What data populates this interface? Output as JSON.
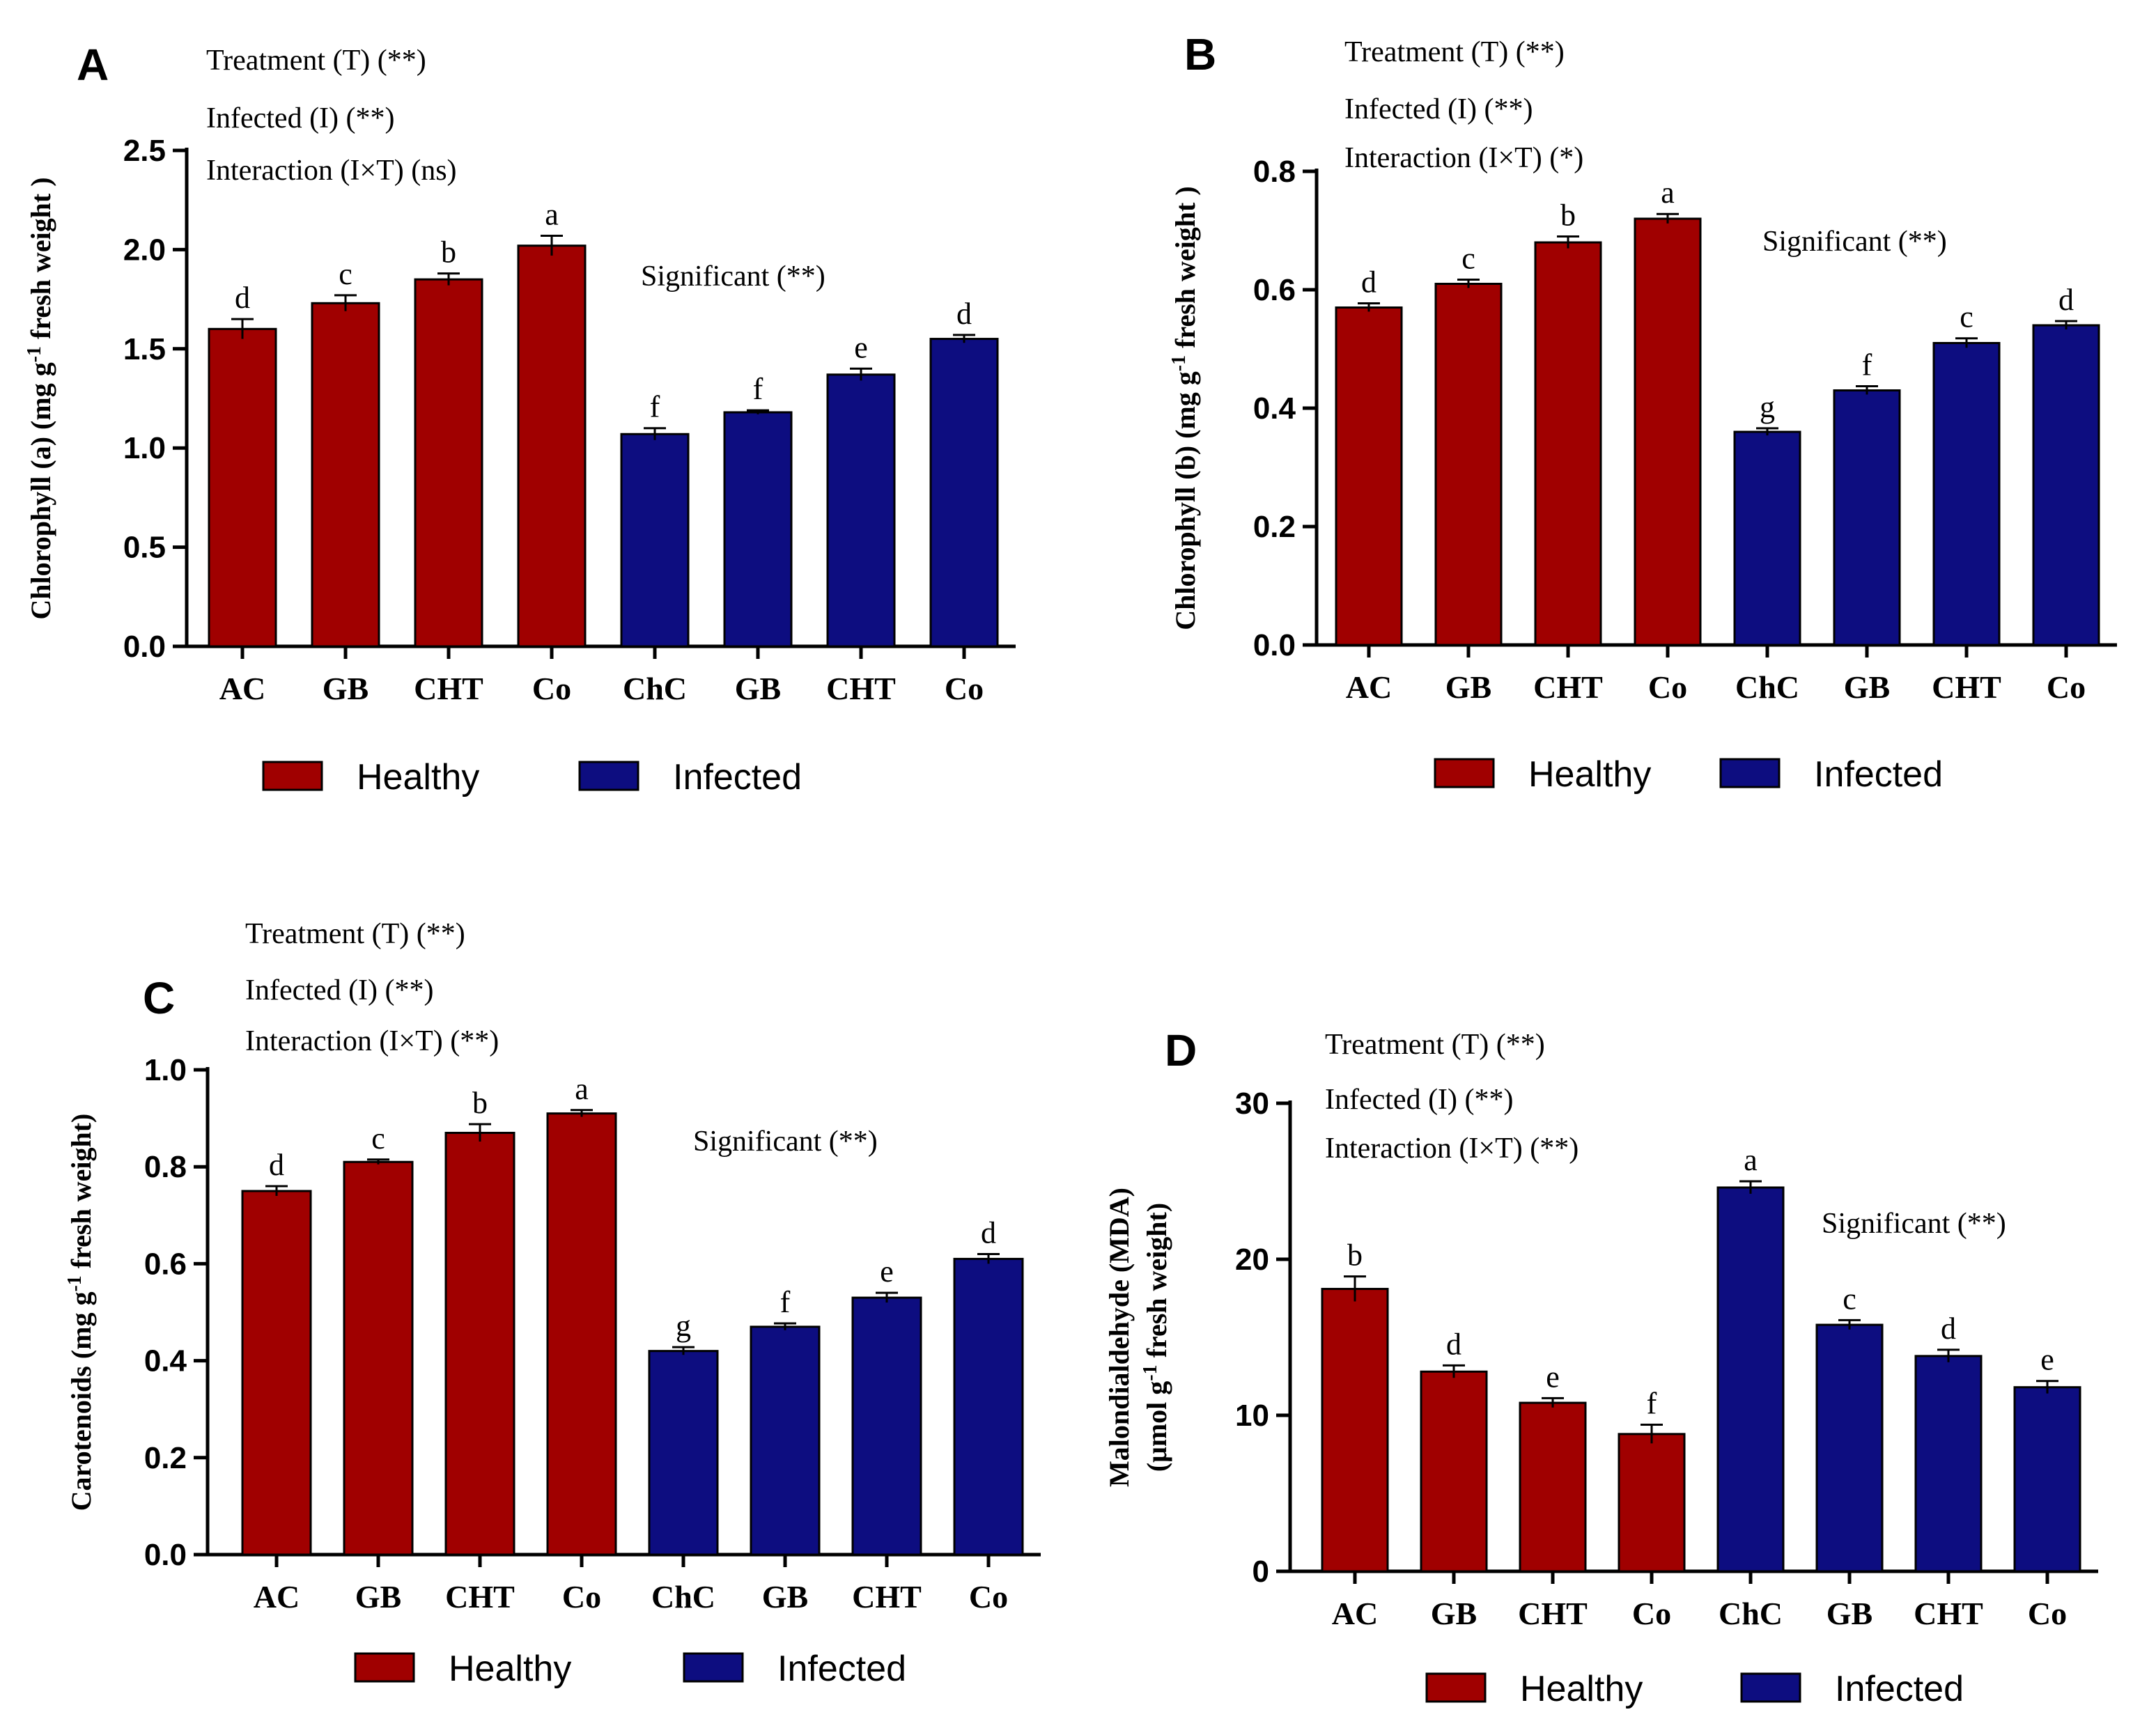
{
  "colors": {
    "healthy": "#a00000",
    "infected": "#0d0d80"
  },
  "legend": {
    "healthy": "Healthy",
    "infected": "Infected"
  },
  "chart_data": [
    {
      "panel": "A",
      "type": "bar",
      "ylabel_main": "Chlorophyll (a) (mg g",
      "ylabel_sup": "-1",
      "ylabel_rest": " fresh weight )",
      "ylim": [
        0,
        2.5
      ],
      "yticks": [
        "0.0",
        "0.5",
        "1.0",
        "1.5",
        "2.0",
        "2.5"
      ],
      "categories": [
        "AC",
        "GB",
        "CHT",
        "Co",
        "ChC",
        "GB",
        "CHT",
        "Co"
      ],
      "groups": [
        "Healthy",
        "Healthy",
        "Healthy",
        "Healthy",
        "Infected",
        "Infected",
        "Infected",
        "Infected"
      ],
      "values": [
        1.6,
        1.73,
        1.85,
        2.02,
        1.07,
        1.18,
        1.37,
        1.55
      ],
      "errors": [
        0.05,
        0.04,
        0.03,
        0.05,
        0.03,
        0.01,
        0.03,
        0.02
      ],
      "letters": [
        "d",
        "c",
        "b",
        "a",
        "f",
        "f",
        "e",
        "d"
      ],
      "stats": [
        "Treatment (T) (**)",
        "Infected (I) (**)",
        "Interaction (I×T) (ns)"
      ],
      "significant": "Significant (**)"
    },
    {
      "panel": "B",
      "type": "bar",
      "ylabel_main": "Chlorophyll (b) (mg g",
      "ylabel_sup": "-1",
      "ylabel_rest": " fresh weight )",
      "ylim": [
        0,
        0.8
      ],
      "yticks": [
        "0.0",
        "0.2",
        "0.4",
        "0.6",
        "0.8"
      ],
      "categories": [
        "AC",
        "GB",
        "CHT",
        "Co",
        "ChC",
        "GB",
        "CHT",
        "Co"
      ],
      "groups": [
        "Healthy",
        "Healthy",
        "Healthy",
        "Healthy",
        "Infected",
        "Infected",
        "Infected",
        "Infected"
      ],
      "values": [
        0.57,
        0.61,
        0.68,
        0.72,
        0.36,
        0.43,
        0.51,
        0.54
      ],
      "errors": [
        0.007,
        0.007,
        0.01,
        0.008,
        0.006,
        0.007,
        0.008,
        0.007
      ],
      "letters": [
        "d",
        "c",
        "b",
        "a",
        "g",
        "f",
        "c",
        "d"
      ],
      "stats": [
        "Treatment (T) (**)",
        "Infected (I) (**)",
        "Interaction (I×T) (*)"
      ],
      "significant": "Significant (**)"
    },
    {
      "panel": "C",
      "type": "bar",
      "ylabel_main": "Carotenoids (mg g",
      "ylabel_sup": "-1",
      "ylabel_rest": " fresh weight)",
      "ylim": [
        0,
        1.0
      ],
      "yticks": [
        "0.0",
        "0.2",
        "0.4",
        "0.6",
        "0.8",
        "1.0"
      ],
      "categories": [
        "AC",
        "GB",
        "CHT",
        "Co",
        "ChC",
        "GB",
        "CHT",
        "Co"
      ],
      "groups": [
        "Healthy",
        "Healthy",
        "Healthy",
        "Healthy",
        "Infected",
        "Infected",
        "Infected",
        "Infected"
      ],
      "values": [
        0.75,
        0.81,
        0.87,
        0.91,
        0.42,
        0.47,
        0.53,
        0.61
      ],
      "errors": [
        0.01,
        0.005,
        0.018,
        0.007,
        0.008,
        0.007,
        0.01,
        0.01
      ],
      "letters": [
        "d",
        "c",
        "b",
        "a",
        "g",
        "f",
        "e",
        "d"
      ],
      "stats": [
        "Treatment (T) (**)",
        "Infected (I) (**)",
        "Interaction (I×T) (**)"
      ],
      "significant": "Significant (**)"
    },
    {
      "panel": "D",
      "type": "bar",
      "ylabel_line1": "Malondialdehyde (MDA)",
      "ylabel_main": "(μmol  g",
      "ylabel_sup": "-1",
      "ylabel_rest": " fresh weight)",
      "ylim": [
        0,
        30
      ],
      "yticks": [
        "0",
        "10",
        "20",
        "30"
      ],
      "categories": [
        "AC",
        "GB",
        "CHT",
        "Co",
        "ChC",
        "GB",
        "CHT",
        "Co"
      ],
      "groups": [
        "Healthy",
        "Healthy",
        "Healthy",
        "Healthy",
        "Infected",
        "Infected",
        "Infected",
        "Infected"
      ],
      "values": [
        18.1,
        12.8,
        10.8,
        8.8,
        24.6,
        15.8,
        13.8,
        11.8
      ],
      "errors": [
        0.8,
        0.4,
        0.3,
        0.6,
        0.4,
        0.3,
        0.4,
        0.4
      ],
      "letters": [
        "b",
        "d",
        "e",
        "f",
        "a",
        "c",
        "d",
        "e"
      ],
      "stats": [
        "Treatment (T) (**)",
        "Infected (I) (**)",
        "Interaction (I×T) (**)"
      ],
      "significant": "Significant (**)"
    }
  ]
}
